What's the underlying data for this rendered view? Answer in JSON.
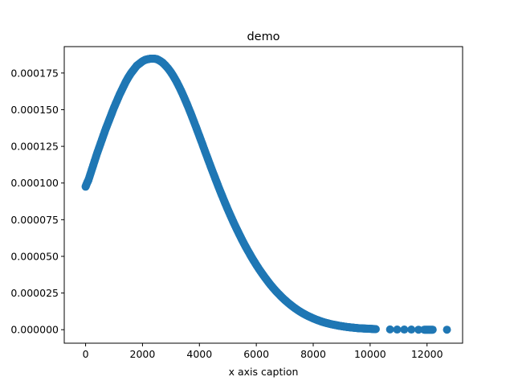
{
  "chart_data": {
    "type": "scatter",
    "title": "demo",
    "xlabel": "x axis caption",
    "ylabel": "",
    "xlim": [
      -750,
      13250
    ],
    "ylim": [
      -9.2e-06,
      0.000193
    ],
    "xticks": [
      0,
      2000,
      4000,
      6000,
      8000,
      10000,
      12000
    ],
    "xtick_labels": [
      "0",
      "2000",
      "4000",
      "6000",
      "8000",
      "10000",
      "12000"
    ],
    "yticks": [
      0,
      2.5e-05,
      5e-05,
      7.5e-05,
      0.0001,
      0.000125,
      0.00015,
      0.000175
    ],
    "ytick_labels": [
      "0.000000",
      "0.000025",
      "0.000050",
      "0.000075",
      "0.000100",
      "0.000125",
      "0.000150",
      "0.000175"
    ],
    "grid": false,
    "legend": "none",
    "marker_color": "#1f77b4",
    "series": [
      {
        "x": [
          0,
          50,
          100,
          200,
          300,
          400,
          500,
          600,
          700,
          800,
          900,
          1000,
          1100,
          1200,
          1300,
          1400,
          1500,
          1600,
          1700,
          1800,
          1900,
          2000,
          2100,
          2200,
          2300,
          2400,
          2500,
          2600,
          2700,
          2800,
          2900,
          3000,
          3100,
          3200,
          3300,
          3400,
          3500,
          3600,
          3700,
          3800,
          3900,
          4000,
          4100,
          4200,
          4300,
          4400,
          4500,
          4600,
          4700,
          4800,
          4900,
          5000,
          5100,
          5200,
          5300,
          5400,
          5500,
          5600,
          5700,
          5800,
          5900,
          6000,
          6100,
          6200,
          6300,
          6400,
          6500,
          6600,
          6700,
          6800,
          6900,
          7000,
          7100,
          7200,
          7300,
          7400,
          7500,
          7600,
          7700,
          7800,
          7900,
          8000,
          8100,
          8200,
          8300,
          8400,
          8500,
          8600,
          8700,
          8800,
          8900,
          9000,
          9100,
          9200,
          9300,
          9400,
          9500,
          9600,
          9700,
          9800,
          9900,
          10000,
          10100,
          10200,
          10700,
          10950,
          11200,
          11450,
          11700,
          11900,
          12050,
          12200,
          12700
        ],
        "y": [
          9.75e-05,
          0.0001,
          0.000102,
          0.000108,
          0.000114,
          0.00012,
          0.0001255,
          0.000131,
          0.0001365,
          0.0001415,
          0.0001465,
          0.0001515,
          0.000156,
          0.0001605,
          0.0001645,
          0.0001685,
          0.000172,
          0.000175,
          0.0001775,
          0.00018,
          0.0001815,
          0.000183,
          0.000184,
          0.0001845,
          0.0001848,
          0.0001848,
          0.0001845,
          0.0001835,
          0.0001822,
          0.0001803,
          0.0001781,
          0.0001755,
          0.0001724,
          0.000169,
          0.0001652,
          0.0001611,
          0.0001567,
          0.0001521,
          0.0001473,
          0.0001423,
          0.0001372,
          0.000132,
          0.0001268,
          0.0001215,
          0.0001163,
          0.0001111,
          0.000106,
          0.000101,
          9.6e-05,
          9.12e-05,
          8.65e-05,
          8.19e-05,
          7.75e-05,
          7.32e-05,
          6.91e-05,
          6.51e-05,
          6.12e-05,
          5.75e-05,
          5.4e-05,
          5.06e-05,
          4.73e-05,
          4.42e-05,
          4.12e-05,
          3.84e-05,
          3.57e-05,
          3.31e-05,
          3.06e-05,
          2.83e-05,
          2.61e-05,
          2.41e-05,
          2.21e-05,
          2.03e-05,
          1.86e-05,
          1.7e-05,
          1.55e-05,
          1.41e-05,
          1.28e-05,
          1.16e-05,
          1.05e-05,
          9.5e-06,
          8.6e-06,
          7.7e-06,
          6.9e-06,
          6.2e-06,
          5.5e-06,
          4.9e-06,
          4.4e-06,
          3.9e-06,
          3.5e-06,
          3.1e-06,
          2.7e-06,
          2.4e-06,
          2.1e-06,
          1.8e-06,
          1.6e-06,
          1.4e-06,
          1.2e-06,
          1e-06,
          9e-07,
          8e-07,
          7e-07,
          6e-07,
          5e-07,
          4e-07,
          2e-07,
          1e-07,
          1e-07,
          1e-07,
          0,
          0,
          0,
          0,
          0
        ]
      }
    ]
  }
}
